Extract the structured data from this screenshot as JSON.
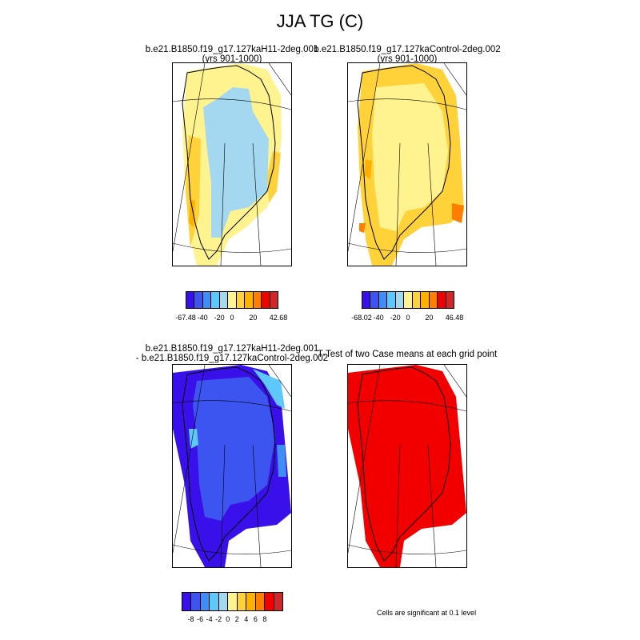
{
  "title": "JJA TG (C)",
  "panels": {
    "p1": {
      "title1": "b.e21.B1850.f19_g17.127kaH11-2deg.001",
      "title2": "(yrs 901-1000)"
    },
    "p2": {
      "title1": "b.e21.B1850.f19_g17.127kaControl-2deg.002",
      "title2": "(yrs 901-1000)"
    },
    "p3": {
      "title1": "b.e21.B1850.f19_g17.127kaH11-2deg.001",
      "title2": "- b.e21.B1850.f19_g17.127kaControl-2deg.002"
    },
    "p4": {
      "title1": "T-Test of two Case means at each grid point"
    }
  },
  "colorbars": {
    "cb1": {
      "ticks": [
        "-67.48",
        "-40",
        "-20",
        "0",
        "20",
        "42.68"
      ]
    },
    "cb2": {
      "ticks": [
        "-68.02",
        "-40",
        "-20",
        "0",
        "20",
        "46.48"
      ]
    },
    "cb3": {
      "ticks": [
        "-8",
        "-6",
        "-4",
        "-2",
        "0",
        "2",
        "4",
        "6",
        "8"
      ]
    },
    "colors_main": [
      "#3a10ea",
      "#3d55f0",
      "#3e8ef5",
      "#5ec8fa",
      "#a4d8f0",
      "#fff38f",
      "#ffd23a",
      "#ffb100",
      "#ff7d00",
      "#f20000",
      "#d02828"
    ],
    "colors_diff": [
      "#3a10ea",
      "#3d55f0",
      "#3e8ef5",
      "#5ec8fa",
      "#a4d8f0",
      "#fff38f",
      "#ffd23a",
      "#ffb100",
      "#ff7d00",
      "#f20000",
      "#d02828"
    ]
  },
  "note": "Cells are significant at 0.1 level"
}
